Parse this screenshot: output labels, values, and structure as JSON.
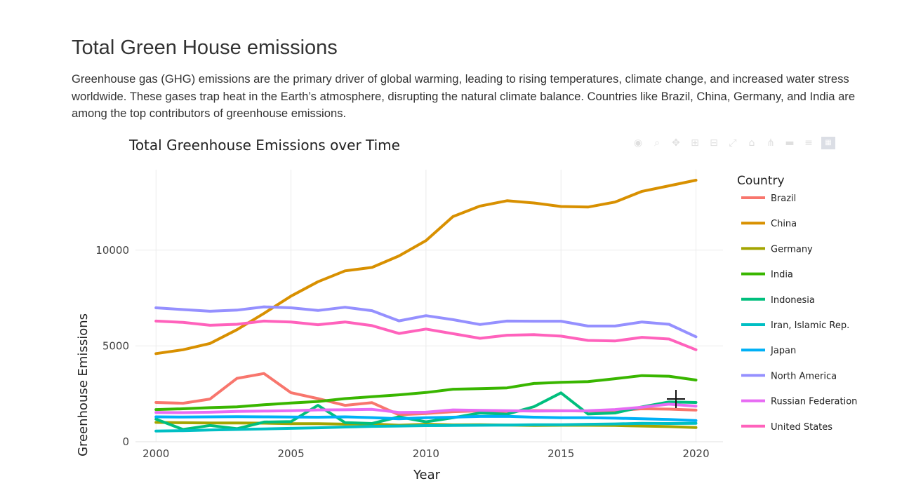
{
  "page": {
    "heading": "Total Green House emissions",
    "description": "Greenhouse gas (GHG) emissions are the primary driver of global warming, leading to rising temperatures, climate change, and increased water stress worldwide. These gases trap heat in the Earth’s atmosphere, disrupting the natural climate balance. Countries like Brazil, China, Germany, and India are among the top contributors of greenhouse emissions."
  },
  "modebar": {
    "icons": [
      "camera-icon",
      "zoom-icon",
      "pan-icon",
      "zoom-in-icon",
      "zoom-out-icon",
      "autoscale-icon",
      "reset-axes-icon",
      "spike-lines-icon",
      "hover-closest-icon",
      "hover-compare-icon",
      "plotly-logo-icon"
    ]
  },
  "chart_data": {
    "type": "line",
    "title": "Total Greenhouse Emissions over Time",
    "xlabel": "Year",
    "ylabel": "Greenhouse Emissions",
    "xlim": [
      1999.5,
      2021
    ],
    "ylim": [
      0,
      14200
    ],
    "x_ticks": [
      2000,
      2005,
      2010,
      2015,
      2020
    ],
    "x_tick_labels": [
      "2000",
      "2005",
      "2010",
      "2015",
      "2020"
    ],
    "y_ticks": [
      0,
      5000,
      10000
    ],
    "y_tick_labels": [
      "0",
      "5000",
      "10000"
    ],
    "grid": true,
    "legend": {
      "title": "Country",
      "placement": "right"
    },
    "x": [
      2000,
      2001,
      2002,
      2003,
      2004,
      2005,
      2006,
      2007,
      2008,
      2009,
      2010,
      2011,
      2012,
      2013,
      2014,
      2015,
      2016,
      2017,
      2018,
      2019,
      2020
    ],
    "series": [
      {
        "name": "Brazil",
        "color": "#F8766D",
        "values": [
          2050,
          2010,
          2230,
          3310,
          3560,
          2560,
          2250,
          1900,
          2040,
          1410,
          1470,
          1570,
          1610,
          1580,
          1630,
          1620,
          1600,
          1620,
          1720,
          1700,
          1650
        ]
      },
      {
        "name": "China",
        "color": "#D89000",
        "values": [
          4600,
          4800,
          5130,
          5850,
          6700,
          7600,
          8350,
          8920,
          9100,
          9700,
          10500,
          11750,
          12300,
          12580,
          12460,
          12280,
          12250,
          12510,
          13070,
          13360,
          13650
        ]
      },
      {
        "name": "Germany",
        "color": "#A3A500",
        "values": [
          1010,
          990,
          980,
          980,
          970,
          940,
          940,
          920,
          930,
          860,
          910,
          880,
          890,
          870,
          850,
          860,
          860,
          850,
          820,
          790,
          740
        ]
      },
      {
        "name": "India",
        "color": "#39B600",
        "values": [
          1680,
          1720,
          1780,
          1820,
          1930,
          2020,
          2100,
          2250,
          2350,
          2450,
          2570,
          2740,
          2770,
          2810,
          3040,
          3100,
          3140,
          3290,
          3450,
          3420,
          3220
        ]
      },
      {
        "name": "Indonesia",
        "color": "#00BF7D",
        "values": [
          1180,
          640,
          850,
          680,
          1030,
          1050,
          1900,
          1000,
          950,
          1300,
          1040,
          1250,
          1500,
          1440,
          1830,
          2550,
          1450,
          1500,
          1820,
          2080,
          2050
        ]
      },
      {
        "name": "Iran, Islamic Rep.",
        "color": "#00BFC4",
        "values": [
          560,
          580,
          610,
          640,
          670,
          700,
          730,
          770,
          800,
          820,
          840,
          850,
          860,
          870,
          890,
          890,
          910,
          930,
          960,
          950,
          960
        ]
      },
      {
        "name": "Japan",
        "color": "#00B0F6",
        "values": [
          1300,
          1290,
          1300,
          1310,
          1300,
          1290,
          1280,
          1300,
          1260,
          1200,
          1250,
          1280,
          1320,
          1330,
          1280,
          1250,
          1250,
          1230,
          1200,
          1160,
          1100
        ]
      },
      {
        "name": "North America",
        "color": "#9590FF",
        "values": [
          6990,
          6900,
          6810,
          6870,
          7040,
          6990,
          6850,
          7020,
          6840,
          6310,
          6580,
          6370,
          6120,
          6300,
          6290,
          6290,
          6040,
          6040,
          6250,
          6130,
          5480
        ]
      },
      {
        "name": "Russian Federation",
        "color": "#E76BF3",
        "values": [
          1530,
          1520,
          1540,
          1580,
          1600,
          1620,
          1660,
          1670,
          1690,
          1530,
          1540,
          1660,
          1640,
          1620,
          1600,
          1610,
          1620,
          1680,
          1800,
          1960,
          1860
        ]
      },
      {
        "name": "United States",
        "color": "#FF62BC",
        "values": [
          6300,
          6230,
          6080,
          6130,
          6300,
          6250,
          6110,
          6250,
          6060,
          5650,
          5880,
          5640,
          5400,
          5560,
          5590,
          5510,
          5290,
          5260,
          5450,
          5360,
          4800
        ]
      }
    ]
  }
}
